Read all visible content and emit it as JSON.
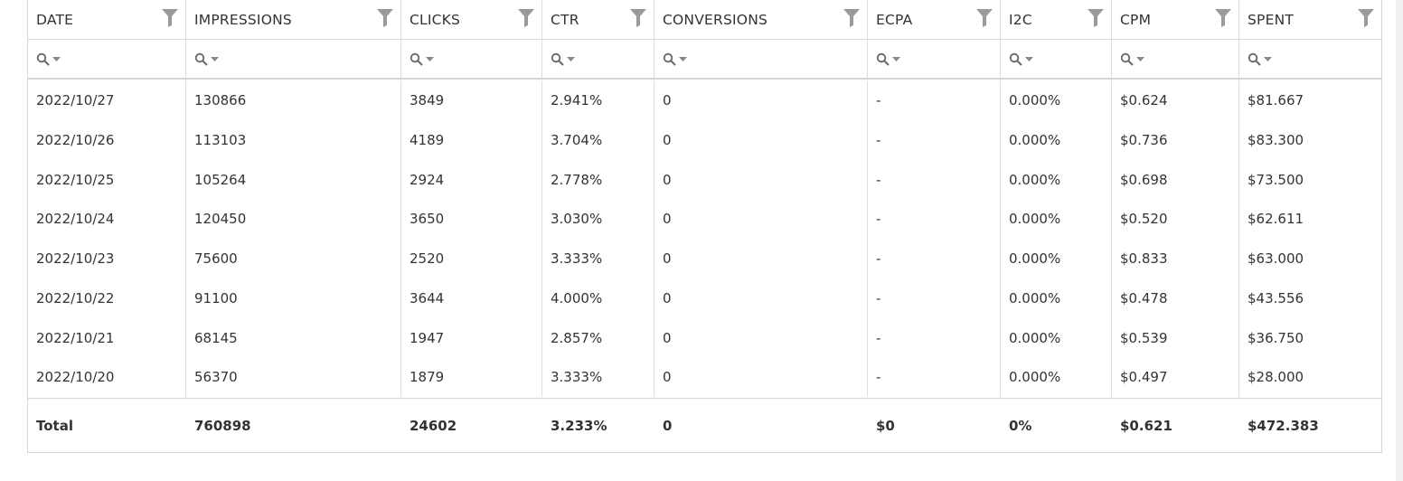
{
  "columns": [
    {
      "label": "DATE"
    },
    {
      "label": "IMPRESSIONS"
    },
    {
      "label": "CLICKS"
    },
    {
      "label": "CTR"
    },
    {
      "label": "CONVERSIONS"
    },
    {
      "label": "ECPA"
    },
    {
      "label": "I2C"
    },
    {
      "label": "CPM"
    },
    {
      "label": "SPENT"
    }
  ],
  "icons": {
    "filter": "funnel-icon",
    "search": "search-icon",
    "dropdown": "caret-down-icon"
  },
  "rows": [
    [
      "2022/10/27",
      "130866",
      "3849",
      "2.941%",
      "0",
      "-",
      "0.000%",
      "$0.624",
      "$81.667"
    ],
    [
      "2022/10/26",
      "113103",
      "4189",
      "3.704%",
      "0",
      "-",
      "0.000%",
      "$0.736",
      "$83.300"
    ],
    [
      "2022/10/25",
      "105264",
      "2924",
      "2.778%",
      "0",
      "-",
      "0.000%",
      "$0.698",
      "$73.500"
    ],
    [
      "2022/10/24",
      "120450",
      "3650",
      "3.030%",
      "0",
      "-",
      "0.000%",
      "$0.520",
      "$62.611"
    ],
    [
      "2022/10/23",
      "75600",
      "2520",
      "3.333%",
      "0",
      "-",
      "0.000%",
      "$0.833",
      "$63.000"
    ],
    [
      "2022/10/22",
      "91100",
      "3644",
      "4.000%",
      "0",
      "-",
      "0.000%",
      "$0.478",
      "$43.556"
    ],
    [
      "2022/10/21",
      "68145",
      "1947",
      "2.857%",
      "0",
      "-",
      "0.000%",
      "$0.539",
      "$36.750"
    ],
    [
      "2022/10/20",
      "56370",
      "1879",
      "3.333%",
      "0",
      "-",
      "0.000%",
      "$0.497",
      "$28.000"
    ]
  ],
  "total": [
    "Total",
    "760898",
    "24602",
    "3.233%",
    "0",
    "$0",
    "0%",
    "$0.621",
    "$472.383"
  ],
  "colors": {
    "border": "#d6d6d6",
    "text": "#333333",
    "icon": "#9a9a9a",
    "background": "#ffffff"
  }
}
